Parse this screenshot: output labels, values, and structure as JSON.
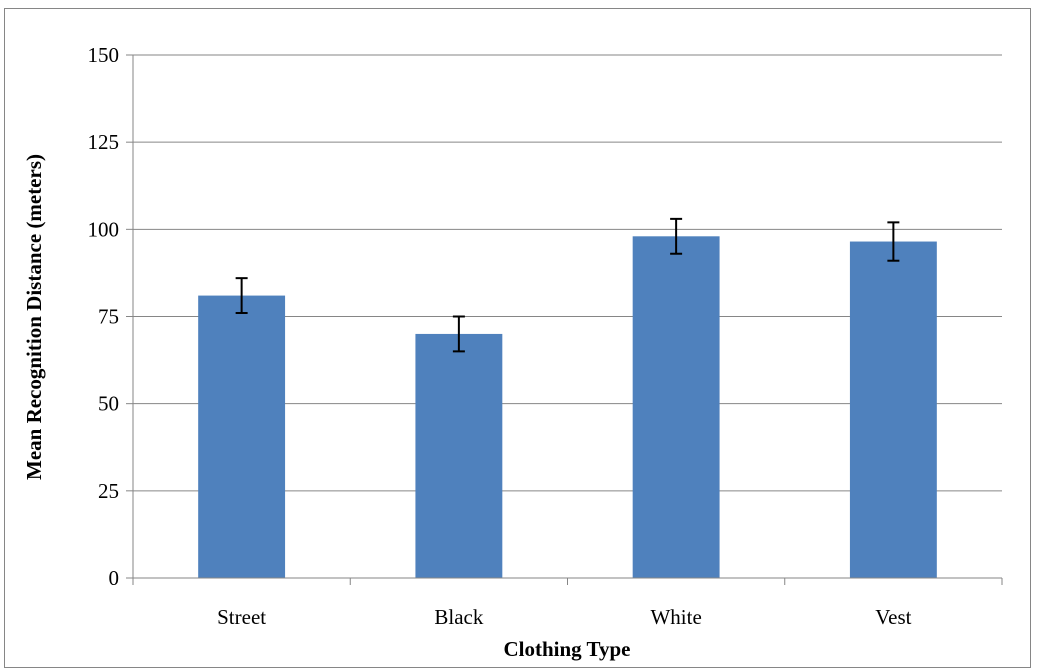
{
  "chart_data": {
    "type": "bar",
    "title": "",
    "xlabel": "Clothing Type",
    "ylabel": "Mean Recognition Distance (meters)",
    "categories": [
      "Street",
      "Black",
      "White",
      "Vest"
    ],
    "values": [
      81,
      70,
      98,
      96.5
    ],
    "error": [
      5,
      5,
      5,
      5.5
    ],
    "ylim": [
      0,
      150
    ],
    "yticks": [
      0,
      25,
      50,
      75,
      100,
      125,
      150
    ],
    "grid": "horizontal",
    "legend": "none",
    "bar_color": "#4f81bd",
    "gridline_color": "#868686",
    "error_bar_color": "#000000"
  }
}
